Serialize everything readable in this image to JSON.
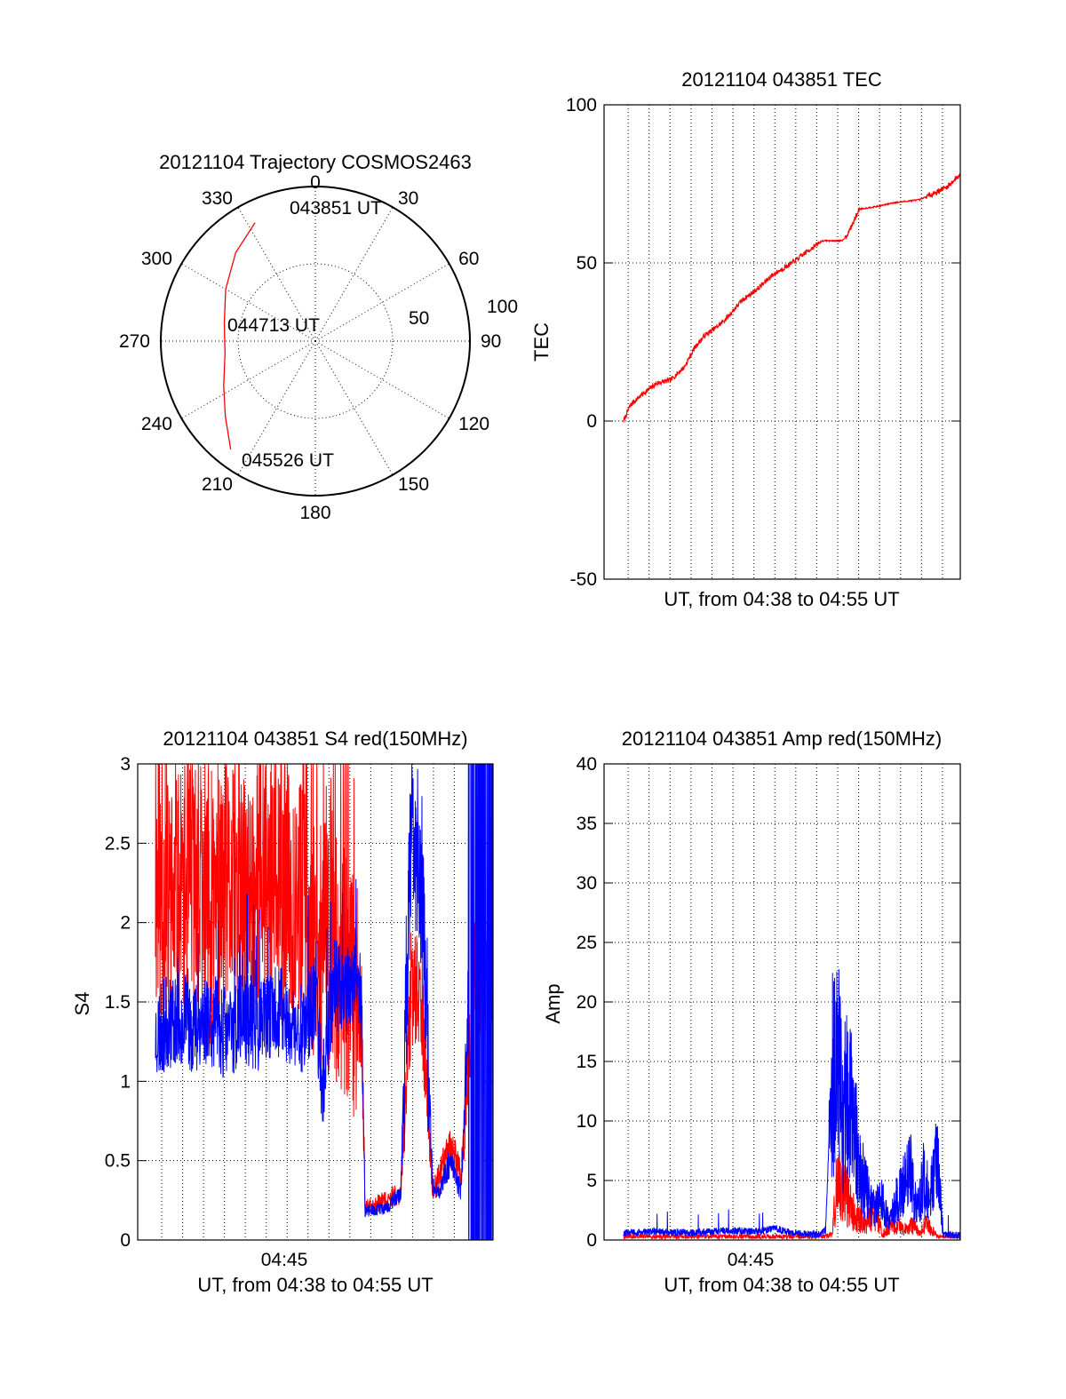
{
  "colors": {
    "red_series": "#ff0000",
    "blue_series": "#0000ff",
    "axes": "#000000"
  },
  "chart_data": [
    {
      "type": "polar",
      "title": "20121104 Trajectory COSMOS2463",
      "angle_labels": [
        "0",
        "30",
        "60",
        "90",
        "120",
        "150",
        "180",
        "210",
        "240",
        "270",
        "300",
        "330"
      ],
      "radius_labels": [
        "50",
        "100"
      ],
      "radial_axis": "elevation",
      "rlim": [
        0,
        100
      ],
      "grid": true,
      "annotations": [
        "043851 UT",
        "044713 UT",
        "045526 UT"
      ],
      "series": [
        {
          "color": "#ff0000",
          "points": [
            {
              "azimuth": 333,
              "r": 86
            },
            {
              "azimuth": 318,
              "r": 77
            },
            {
              "azimuth": 300,
              "r": 67
            },
            {
              "azimuth": 281,
              "r": 60
            },
            {
              "azimuth": 262,
              "r": 59
            },
            {
              "azimuth": 244,
              "r": 66
            },
            {
              "azimuth": 230,
              "r": 76
            },
            {
              "azimuth": 218,
              "r": 89
            }
          ]
        }
      ]
    },
    {
      "type": "line",
      "title": "20121104 043851 TEC",
      "xlabel": "UT, from 04:38 to 04:55 UT",
      "ylabel": "TEC",
      "xlim": [
        0,
        100
      ],
      "ylim": [
        -50,
        100
      ],
      "yticks": [
        "100",
        "50",
        "0",
        "-50"
      ],
      "grid": true,
      "series": [
        {
          "color": "#ff0000",
          "x": [
            0,
            2,
            5,
            10,
            14,
            18,
            21,
            24,
            28,
            31,
            35,
            40,
            44,
            50,
            55,
            59,
            62,
            65,
            67,
            70,
            76,
            80,
            84,
            88,
            92,
            96,
            100
          ],
          "y": [
            0,
            5,
            8,
            12,
            13,
            17,
            23,
            27,
            30,
            33,
            38,
            42,
            46,
            50,
            54,
            57,
            57,
            57,
            60,
            67,
            68,
            69,
            69.5,
            70,
            72,
            74,
            78
          ]
        }
      ]
    },
    {
      "type": "line",
      "title": "20121104 043851 S4 red(150MHz)",
      "xlabel": "UT, from 04:38 to 04:55 UT",
      "ylabel": "S4",
      "xlim": [
        0,
        100
      ],
      "ylim": [
        0,
        3
      ],
      "yticks": [
        "3",
        "2.5",
        "2",
        "1.5",
        "1",
        "0.5",
        "0"
      ],
      "xticks": [
        "04:45"
      ],
      "grid": true,
      "series": [
        {
          "color": "#ff0000",
          "x": [
            5,
            10,
            15,
            20,
            25,
            30,
            35,
            40,
            45,
            50,
            55,
            60,
            63,
            64,
            70,
            74,
            77,
            80,
            83,
            85,
            88,
            91,
            95,
            100
          ],
          "y": [
            2.2,
            2.1,
            2.25,
            2.0,
            2.2,
            2.1,
            2.3,
            2.1,
            2.2,
            1.9,
            1.8,
            1.6,
            1.4,
            0.2,
            0.25,
            0.3,
            1.6,
            1.5,
            0.3,
            0.4,
            0.6,
            0.4,
            1.7,
            1.7
          ]
        },
        {
          "color": "#0000ff",
          "x": [
            5,
            10,
            15,
            20,
            25,
            30,
            35,
            40,
            45,
            50,
            52,
            55,
            60,
            63,
            64,
            70,
            74,
            77,
            80,
            83,
            85,
            88,
            91,
            93,
            95,
            100
          ],
          "y": [
            1.3,
            1.4,
            1.35,
            1.4,
            1.3,
            1.4,
            1.35,
            1.45,
            1.3,
            1.5,
            1.0,
            1.6,
            1.6,
            1.5,
            0.18,
            0.2,
            0.3,
            2.5,
            2.3,
            0.35,
            0.3,
            0.5,
            0.3,
            1.5,
            1.0,
            1.3
          ]
        }
      ]
    },
    {
      "type": "line",
      "title": "20121104 043851 Amp red(150MHz)",
      "xlabel": "UT, from 04:38 to 04:55 UT",
      "ylabel": "Amp",
      "xlim": [
        0,
        100
      ],
      "ylim": [
        0,
        40
      ],
      "yticks": [
        "40",
        "35",
        "30",
        "25",
        "20",
        "15",
        "10",
        "5",
        "0"
      ],
      "xticks": [
        "04:45"
      ],
      "grid": true,
      "series": [
        {
          "color": "#ff0000",
          "x": [
            0,
            60,
            62,
            63,
            65,
            67,
            69,
            72,
            75,
            77,
            80,
            83,
            86,
            88,
            90,
            93,
            95,
            100
          ],
          "y": [
            0.3,
            0.3,
            0.5,
            4.0,
            5.0,
            3.0,
            2.0,
            1.5,
            2.5,
            0.5,
            1.5,
            0.8,
            1.2,
            0.5,
            1.5,
            0.3,
            0.3,
            0.3
          ]
        },
        {
          "color": "#0000ff",
          "x": [
            0,
            10,
            20,
            30,
            40,
            45,
            50,
            55,
            58,
            60,
            62,
            63,
            65,
            67,
            69,
            71,
            74,
            77,
            79,
            81,
            83,
            85,
            87,
            89,
            91,
            93,
            95,
            100
          ],
          "y": [
            0.6,
            0.7,
            0.6,
            0.8,
            0.7,
            1.0,
            0.6,
            0.5,
            0.5,
            0.8,
            16.0,
            20.0,
            12.0,
            15.0,
            10.0,
            6.0,
            3.0,
            4.0,
            1.5,
            4.0,
            5.0,
            7.0,
            3.0,
            6.0,
            4.0,
            8.0,
            0.5,
            0.4
          ]
        }
      ]
    }
  ]
}
